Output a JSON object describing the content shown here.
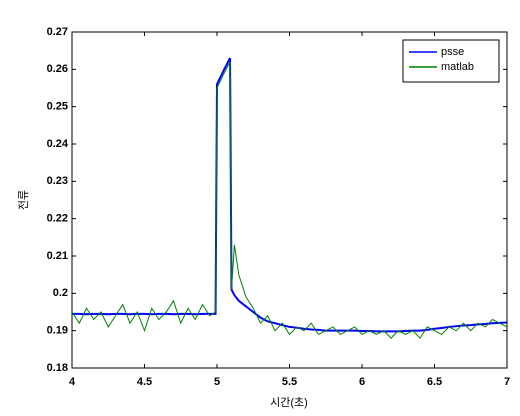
{
  "chart_data": {
    "type": "line",
    "xlabel": "시간(초)",
    "ylabel": "전류",
    "x": [
      4.0,
      4.05,
      4.1,
      4.15,
      4.2,
      4.25,
      4.3,
      4.35,
      4.4,
      4.45,
      4.5,
      4.55,
      4.6,
      4.65,
      4.7,
      4.75,
      4.8,
      4.85,
      4.9,
      4.95,
      4.99,
      5.0,
      5.05,
      5.09,
      5.1,
      5.12,
      5.15,
      5.2,
      5.25,
      5.3,
      5.35,
      5.4,
      5.45,
      5.5,
      5.55,
      5.6,
      5.65,
      5.7,
      5.75,
      5.8,
      5.85,
      5.9,
      5.95,
      6.0,
      6.05,
      6.1,
      6.15,
      6.2,
      6.25,
      6.3,
      6.35,
      6.4,
      6.45,
      6.5,
      6.55,
      6.6,
      6.65,
      6.7,
      6.75,
      6.8,
      6.85,
      6.9,
      6.95,
      7.0
    ],
    "series": [
      {
        "name": "psse",
        "color": "#0000ff",
        "values": [
          0.1945,
          0.1945,
          0.1944,
          0.1945,
          0.1945,
          0.1944,
          0.1945,
          0.1945,
          0.1944,
          0.1945,
          0.1945,
          0.1944,
          0.1945,
          0.1945,
          0.1944,
          0.1945,
          0.1945,
          0.1944,
          0.1945,
          0.1945,
          0.1945,
          0.256,
          0.26,
          0.263,
          0.201,
          0.1995,
          0.198,
          0.1965,
          0.195,
          0.1935,
          0.1925,
          0.192,
          0.1915,
          0.191,
          0.1908,
          0.1905,
          0.1903,
          0.1902,
          0.19,
          0.19,
          0.19,
          0.19,
          0.19,
          0.1899,
          0.1899,
          0.1898,
          0.1898,
          0.1898,
          0.1898,
          0.1899,
          0.19,
          0.19,
          0.1902,
          0.1905,
          0.1907,
          0.191,
          0.1912,
          0.1914,
          0.1915,
          0.1917,
          0.1918,
          0.192,
          0.1921,
          0.1922
        ]
      },
      {
        "name": "matlab",
        "color": "#008000",
        "values": [
          0.195,
          0.192,
          0.196,
          0.193,
          0.195,
          0.191,
          0.194,
          0.197,
          0.192,
          0.195,
          0.19,
          0.196,
          0.193,
          0.195,
          0.198,
          0.192,
          0.196,
          0.193,
          0.197,
          0.194,
          0.195,
          0.255,
          0.259,
          0.262,
          0.201,
          0.213,
          0.205,
          0.199,
          0.196,
          0.192,
          0.194,
          0.19,
          0.192,
          0.189,
          0.191,
          0.19,
          0.192,
          0.189,
          0.19,
          0.191,
          0.189,
          0.19,
          0.191,
          0.189,
          0.19,
          0.189,
          0.19,
          0.188,
          0.19,
          0.189,
          0.19,
          0.188,
          0.191,
          0.19,
          0.189,
          0.191,
          0.19,
          0.192,
          0.19,
          0.192,
          0.191,
          0.193,
          0.192,
          0.191
        ]
      }
    ],
    "xlim": [
      4,
      7
    ],
    "ylim": [
      0.18,
      0.27
    ],
    "xticks": [
      4,
      4.5,
      5,
      5.5,
      6,
      6.5,
      7
    ],
    "yticks": [
      0.18,
      0.19,
      0.2,
      0.21,
      0.22,
      0.23,
      0.24,
      0.25,
      0.26,
      0.27
    ],
    "grid": false,
    "legend": "upper right"
  }
}
